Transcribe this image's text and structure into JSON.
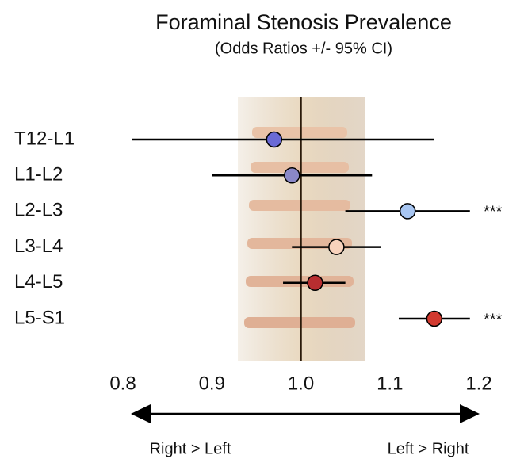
{
  "chart_data": {
    "type": "forest",
    "title": "Foraminal Stenosis Prevalence",
    "subtitle": "(Odds Ratios +/- 95% CI)",
    "categories": [
      "T12-L1",
      "L1-L2",
      "L2-L3",
      "L3-L4",
      "L4-L5",
      "L5-S1"
    ],
    "values": [
      0.97,
      0.99,
      1.12,
      1.04,
      1.016,
      1.15
    ],
    "lower": [
      0.81,
      0.9,
      1.05,
      0.99,
      0.98,
      1.11
    ],
    "upper": [
      1.15,
      1.08,
      1.19,
      1.09,
      1.05,
      1.19
    ],
    "colors": [
      "#6a6ad6",
      "#8a88c8",
      "#a8c6f2",
      "#f8d2bc",
      "#b82e30",
      "#d23a30"
    ],
    "significance": [
      null,
      null,
      "***",
      null,
      null,
      "***"
    ],
    "reference_line": 1,
    "xlim": [
      0.8,
      1.2
    ],
    "xticks": [
      0.8,
      0.9,
      {
        "value": 1,
        "label": "1.0"
      },
      1.1,
      1.2
    ],
    "direction_labels": [
      "Right > Left",
      "Left > Right"
    ]
  }
}
